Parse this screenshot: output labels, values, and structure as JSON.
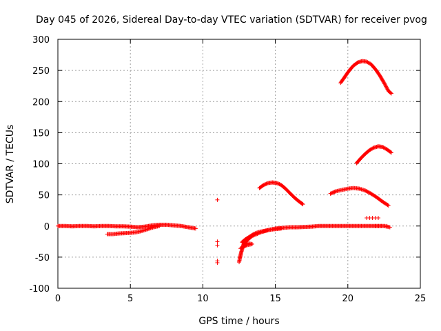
{
  "chart_data": {
    "type": "scatter",
    "title": "Day 045 of 2026, Sidereal Day-to-day VTEC variation (SDTVAR) for receiver pvog",
    "xlabel": "GPS time / hours",
    "ylabel": "SDTVAR / TECUs",
    "xlim": [
      0,
      25
    ],
    "ylim": [
      -100,
      300
    ],
    "xticks": [
      0,
      5,
      10,
      15,
      20,
      25
    ],
    "yticks": [
      -100,
      -50,
      0,
      50,
      100,
      150,
      200,
      250,
      300
    ],
    "grid": true,
    "marker": "plus",
    "color": "#ff0000",
    "series": [
      {
        "name": "baseline-early",
        "points": [
          [
            0,
            0
          ],
          [
            0.5,
            0
          ],
          [
            1,
            -0.5
          ],
          [
            1.5,
            0
          ],
          [
            2,
            0
          ],
          [
            2.5,
            -0.5
          ],
          [
            3,
            0
          ],
          [
            3.5,
            0
          ],
          [
            4,
            -0.5
          ],
          [
            4.5,
            -0.5
          ],
          [
            5,
            -1
          ],
          [
            5.5,
            -2
          ],
          [
            6,
            -1
          ],
          [
            6.5,
            1
          ],
          [
            7,
            2
          ],
          [
            7.5,
            2
          ],
          [
            8,
            1
          ],
          [
            8.5,
            0
          ],
          [
            9,
            -2
          ],
          [
            9.5,
            -4
          ]
        ]
      },
      {
        "name": "lower-branch",
        "points": [
          [
            3.4,
            -13
          ],
          [
            3.8,
            -13
          ],
          [
            4.2,
            -12
          ],
          [
            4.6,
            -11.5
          ],
          [
            5,
            -11
          ],
          [
            5.4,
            -10
          ],
          [
            5.8,
            -8
          ],
          [
            6.2,
            -5
          ],
          [
            6.6,
            -2
          ],
          [
            7,
            0
          ]
        ]
      },
      {
        "name": "isolated",
        "points": [
          [
            11,
            42
          ],
          [
            11,
            -25
          ],
          [
            11,
            -31
          ],
          [
            11,
            -56
          ],
          [
            11,
            -59
          ]
        ]
      },
      {
        "name": "recovery",
        "points": [
          [
            12.5,
            -58
          ],
          [
            12.55,
            -52
          ],
          [
            12.6,
            -47
          ],
          [
            12.65,
            -42
          ],
          [
            12.7,
            -38
          ],
          [
            12.75,
            -34
          ],
          [
            12.8,
            -30
          ],
          [
            12.9,
            -27
          ],
          [
            13,
            -24
          ],
          [
            13.2,
            -20
          ],
          [
            13.4,
            -16
          ],
          [
            13.7,
            -13
          ],
          [
            14,
            -10
          ],
          [
            14.3,
            -8
          ],
          [
            14.6,
            -6
          ],
          [
            15,
            -4
          ],
          [
            15.5,
            -3
          ],
          [
            16,
            -2
          ],
          [
            16.5,
            -2
          ],
          [
            17,
            -1.5
          ],
          [
            17.5,
            -1
          ],
          [
            18,
            0
          ],
          [
            18.5,
            0
          ],
          [
            19,
            0
          ],
          [
            19.5,
            0
          ],
          [
            20,
            0
          ],
          [
            20.5,
            0
          ],
          [
            21,
            0
          ],
          [
            21.5,
            0
          ],
          [
            22,
            0
          ],
          [
            22.5,
            0
          ],
          [
            22.9,
            -2
          ]
        ]
      },
      {
        "name": "recovery-lower",
        "points": [
          [
            12.6,
            -36
          ],
          [
            12.8,
            -33
          ],
          [
            13,
            -31
          ],
          [
            13.2,
            -30
          ],
          [
            13.4,
            -29
          ],
          [
            12.7,
            -26
          ],
          [
            12.9,
            -22
          ],
          [
            13.1,
            -19
          ],
          [
            13.3,
            -16
          ],
          [
            13.5,
            -13
          ],
          [
            13.8,
            -10
          ],
          [
            14.2,
            -8
          ],
          [
            14.6,
            -6
          ],
          [
            15,
            -5
          ],
          [
            15.4,
            -4
          ]
        ]
      },
      {
        "name": "arc-14-17",
        "points": [
          [
            13.9,
            61
          ],
          [
            14.2,
            66
          ],
          [
            14.5,
            69
          ],
          [
            14.8,
            70
          ],
          [
            15.1,
            69
          ],
          [
            15.4,
            66
          ],
          [
            15.7,
            60
          ],
          [
            16,
            53
          ],
          [
            16.3,
            46
          ],
          [
            16.6,
            40
          ],
          [
            16.9,
            35
          ]
        ]
      },
      {
        "name": "arc-19-23-mid",
        "points": [
          [
            18.8,
            52
          ],
          [
            19.2,
            56
          ],
          [
            19.6,
            58
          ],
          [
            20,
            60
          ],
          [
            20.4,
            61
          ],
          [
            20.8,
            60
          ],
          [
            21.2,
            57
          ],
          [
            21.6,
            52
          ],
          [
            22,
            46
          ],
          [
            22.4,
            39
          ],
          [
            22.8,
            33
          ]
        ]
      },
      {
        "name": "arc-20-23-high",
        "points": [
          [
            20.6,
            101
          ],
          [
            20.9,
            109
          ],
          [
            21.2,
            116
          ],
          [
            21.5,
            122
          ],
          [
            21.8,
            126
          ],
          [
            22.1,
            128
          ],
          [
            22.4,
            127
          ],
          [
            22.7,
            123
          ],
          [
            23,
            118
          ]
        ]
      },
      {
        "name": "arc-19-23-top",
        "points": [
          [
            19.5,
            230
          ],
          [
            19.8,
            240
          ],
          [
            20.1,
            250
          ],
          [
            20.4,
            258
          ],
          [
            20.7,
            263
          ],
          [
            21,
            265
          ],
          [
            21.3,
            264
          ],
          [
            21.6,
            260
          ],
          [
            21.9,
            252
          ],
          [
            22.2,
            242
          ],
          [
            22.5,
            230
          ],
          [
            22.8,
            217
          ],
          [
            23,
            213
          ]
        ]
      },
      {
        "name": "short-segments",
        "points": [
          [
            21.3,
            13
          ],
          [
            21.5,
            13
          ],
          [
            21.7,
            13
          ],
          [
            21.9,
            13
          ],
          [
            22.1,
            13
          ],
          [
            21.9,
            0
          ],
          [
            22.1,
            0
          ],
          [
            22.3,
            0
          ],
          [
            22.5,
            0
          ],
          [
            22.7,
            0
          ]
        ]
      }
    ]
  }
}
